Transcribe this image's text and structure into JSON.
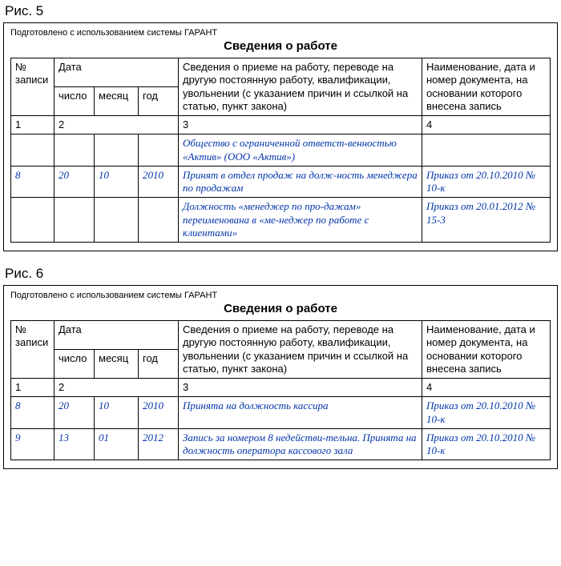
{
  "garant_note": "Подготовлено с использованием системы ГАРАНТ",
  "table_title": "Сведения о работе",
  "headers": {
    "record_no": "№ записи",
    "date": "Дата",
    "day": "число",
    "month": "месяц",
    "year": "год",
    "details": "Сведения о приеме на работу, переводе на другую постоянную работу, квалификации, увольнении (с указанием причин и ссылкой на статью, пункт закона)",
    "doc": "Наименование, дата и номер документа, на основании которого внесена запись",
    "c1": "1",
    "c2": "2",
    "c3": "3",
    "c4": "4"
  },
  "fig5": {
    "caption": "Рис. 5",
    "rows": [
      {
        "no": "",
        "day": "",
        "month": "",
        "year": "",
        "details": "Общество с ограниченной ответст-венностью «Актив» (ООО «Актив»)",
        "doc": ""
      },
      {
        "no": "8",
        "day": "20",
        "month": "10",
        "year": "2010",
        "details": "Принят в отдел продаж на долж-ность менеджера по продажам",
        "doc": "Приказ от 20.10.2010 № 10-к"
      },
      {
        "no": "",
        "day": "",
        "month": "",
        "year": "",
        "details": "Должность «менеджер по про-дажам» переименована в «ме-неджер по работе с клиентами»",
        "doc": "Приказ от 20.01.2012 № 15-3"
      }
    ]
  },
  "fig6": {
    "caption": "Рис. 6",
    "rows": [
      {
        "no": "8",
        "day": "20",
        "month": "10",
        "year": "2010",
        "details": "Принята на должность кассира",
        "doc": "Приказ от 20.10.2010 № 10-к"
      },
      {
        "no": "9",
        "day": "13",
        "month": "01",
        "year": "2012",
        "details": "Запись за номером 8 недействи-тельна. Принята на должность оператора кассового зала",
        "doc": "Приказ от 20.10.2010 № 10-к"
      }
    ]
  },
  "style": {
    "handwritten_color": "#0033aa",
    "border_color": "#000000",
    "background_color": "#ffffff"
  }
}
